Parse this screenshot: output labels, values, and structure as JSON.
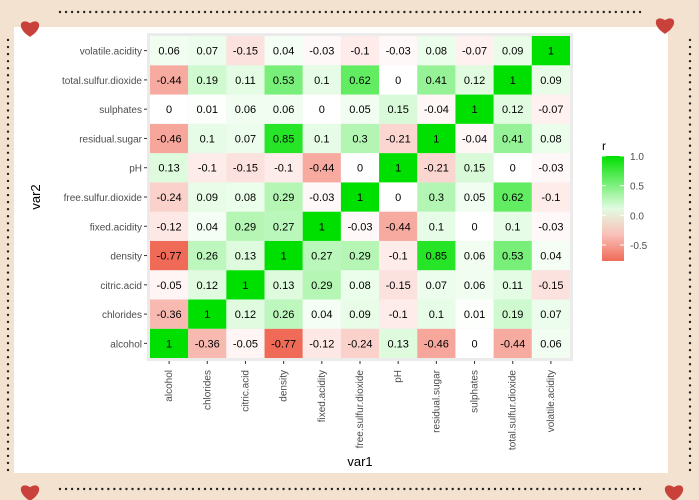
{
  "colors": {
    "background": "#f3e2cf",
    "heart": "#c9413b",
    "high": "#00e000",
    "mid": "#ffffff",
    "low": "#f06a58"
  },
  "chart_data": {
    "type": "heatmap",
    "title": "",
    "xlabel": "var1",
    "ylabel": "var2",
    "x_categories": [
      "alcohol",
      "chlorides",
      "citric.acid",
      "density",
      "fixed.acidity",
      "free.sulfur.dioxide",
      "pH",
      "residual.sugar",
      "sulphates",
      "total.sulfur.dioxide",
      "volatile.acidity"
    ],
    "y_categories": [
      "alcohol",
      "chlorides",
      "citric.acid",
      "density",
      "fixed.acidity",
      "free.sulfur.dioxide",
      "pH",
      "residual.sugar",
      "sulphates",
      "total.sulfur.dioxide",
      "volatile.acidity"
    ],
    "values": [
      [
        1,
        -0.36,
        -0.05,
        -0.77,
        -0.12,
        -0.24,
        0.13,
        -0.46,
        0,
        -0.44,
        0.06
      ],
      [
        -0.36,
        1,
        0.12,
        0.26,
        0.04,
        0.09,
        -0.1,
        0.1,
        0.01,
        0.19,
        0.07
      ],
      [
        -0.05,
        0.12,
        1,
        0.13,
        0.29,
        0.08,
        -0.15,
        0.07,
        0.06,
        0.11,
        -0.15
      ],
      [
        -0.77,
        0.26,
        0.13,
        1,
        0.27,
        0.29,
        -0.1,
        0.85,
        0.06,
        0.53,
        0.04
      ],
      [
        -0.12,
        0.04,
        0.29,
        0.27,
        1,
        -0.03,
        -0.44,
        0.1,
        0,
        0.1,
        -0.03
      ],
      [
        -0.24,
        0.09,
        0.08,
        0.29,
        -0.03,
        1,
        0,
        0.3,
        0.05,
        0.62,
        -0.1
      ],
      [
        0.13,
        -0.1,
        -0.15,
        -0.1,
        -0.44,
        0,
        1,
        -0.21,
        0.15,
        0,
        -0.03
      ],
      [
        -0.46,
        0.1,
        0.07,
        0.85,
        0.1,
        0.3,
        -0.21,
        1,
        -0.04,
        0.41,
        0.08
      ],
      [
        0,
        0.01,
        0.06,
        0.06,
        0,
        0.05,
        0.15,
        -0.04,
        1,
        0.12,
        -0.07
      ],
      [
        -0.44,
        0.19,
        0.11,
        0.53,
        0.1,
        0.62,
        0,
        0.41,
        0.12,
        1,
        0.09
      ],
      [
        0.06,
        0.07,
        -0.15,
        0.04,
        -0.03,
        -0.1,
        -0.03,
        0.08,
        -0.07,
        0.09,
        1
      ]
    ],
    "legend": {
      "title": "r",
      "position": "right",
      "ticks": [
        "1.0",
        "0.5",
        "0.0",
        "-0.5"
      ],
      "tick_values": [
        1.0,
        0.5,
        0.0,
        -0.5
      ],
      "range": [
        -0.77,
        1.0
      ]
    },
    "grid": true
  }
}
